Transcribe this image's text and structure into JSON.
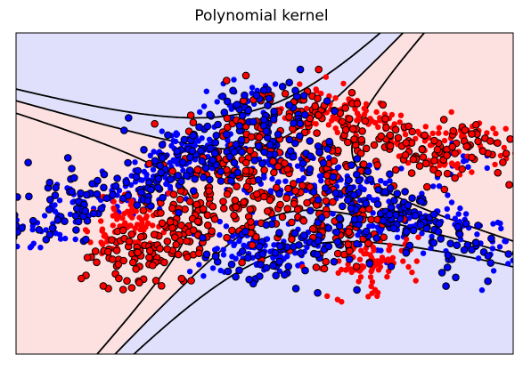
{
  "chart_data": {
    "type": "scatter",
    "title": "Polynomial kernel",
    "xlabel": "",
    "ylabel": "",
    "xlim": [
      -3.0,
      3.0
    ],
    "ylim": [
      -2.0,
      2.0
    ],
    "grid": false,
    "legend": "none",
    "ticks": "hidden",
    "background_regions": {
      "positive": "#fde0e0",
      "negative": "#e0e0fc"
    },
    "class_colors": {
      "positive": "#ff0000",
      "negative": "#0000ff"
    },
    "decision_boundary": {
      "form": "0.5*x^2 - 1.5*y^2 + 1.2*x*y - 0.3*x + 0.4*y + 0.3",
      "levels": [
        -1,
        0,
        1
      ],
      "line_styles": [
        "dashed",
        "solid",
        "dashed"
      ],
      "color": "#000000"
    },
    "series": [
      {
        "class": "negative",
        "marker": "circle",
        "outlined_support_vectors": false,
        "points": [
          [
            -1.0,
            0.35
          ],
          [
            -1.2,
            0.2
          ],
          [
            -0.8,
            0.5
          ],
          [
            -0.6,
            0.55
          ],
          [
            -1.1,
            0.4
          ],
          [
            -1.4,
            0.1
          ],
          [
            -1.7,
            -0.05
          ],
          [
            -2.0,
            -0.05
          ],
          [
            -2.3,
            -0.1
          ],
          [
            -0.9,
            0.6
          ],
          [
            0.1,
            0.5
          ],
          [
            0.3,
            0.35
          ],
          [
            0.6,
            0.1
          ],
          [
            0.9,
            0.2
          ],
          [
            1.2,
            0.05
          ],
          [
            1.5,
            -0.1
          ],
          [
            1.7,
            -0.35
          ],
          [
            2.0,
            -0.35
          ],
          [
            2.4,
            -0.4
          ],
          [
            -0.6,
            -0.7
          ],
          [
            -0.3,
            -0.75
          ],
          [
            0.0,
            -0.72
          ],
          [
            0.2,
            -0.8
          ],
          [
            -0.1,
            -0.55
          ],
          [
            0.5,
            -0.6
          ],
          [
            -0.4,
            1.05
          ],
          [
            -0.2,
            1.15
          ],
          [
            1.2,
            -0.55
          ],
          [
            1.6,
            -0.45
          ],
          [
            -2.8,
            -0.45
          ],
          [
            -2.5,
            -0.3
          ],
          [
            2.4,
            0.4
          ],
          [
            2.75,
            -0.6
          ],
          [
            0.3,
            0.0
          ],
          [
            -0.2,
            0.3
          ]
        ]
      },
      {
        "class": "positive",
        "marker": "circle",
        "outlined_support_vectors": false,
        "points": [
          [
            -1.6,
            -0.3
          ],
          [
            -1.5,
            -0.45
          ],
          [
            -1.7,
            -0.4
          ],
          [
            -1.9,
            -0.6
          ],
          [
            -1.6,
            -0.2
          ],
          [
            1.2,
            -0.75
          ],
          [
            1.4,
            -0.85
          ],
          [
            1.1,
            -0.95
          ],
          [
            1.5,
            -0.7
          ],
          [
            1.3,
            -1.1
          ],
          [
            0.8,
            1.05
          ],
          [
            1.0,
            0.95
          ],
          [
            0.6,
            1.1
          ],
          [
            1.3,
            0.9
          ],
          [
            2.0,
            0.6
          ],
          [
            2.3,
            0.75
          ],
          [
            2.6,
            0.6
          ],
          [
            2.1,
            0.4
          ],
          [
            0.4,
            0.9
          ],
          [
            1.6,
            0.7
          ]
        ]
      },
      {
        "class": "positive",
        "marker": "circle",
        "outlined_support_vectors": true,
        "points": [
          [
            -0.3,
            0.2
          ],
          [
            0.0,
            0.0
          ],
          [
            0.4,
            -0.2
          ],
          [
            -0.5,
            -0.1
          ],
          [
            0.7,
            0.3
          ],
          [
            -0.9,
            -0.1
          ],
          [
            0.9,
            -0.3
          ],
          [
            -1.1,
            -0.5
          ],
          [
            0.2,
            0.4
          ],
          [
            -0.2,
            -0.4
          ],
          [
            1.1,
            0.6
          ],
          [
            1.5,
            0.6
          ],
          [
            1.9,
            0.55
          ],
          [
            2.2,
            0.55
          ],
          [
            2.5,
            0.45
          ],
          [
            0.3,
            1.0
          ],
          [
            0.7,
            1.05
          ],
          [
            -0.1,
            0.9
          ],
          [
            -1.3,
            -0.8
          ],
          [
            -1.6,
            -0.75
          ],
          [
            -1.8,
            -1.0
          ],
          [
            -0.8,
            -0.5
          ],
          [
            0.6,
            -0.45
          ],
          [
            1.0,
            -0.5
          ],
          [
            -0.4,
            0.6
          ]
        ]
      },
      {
        "class": "negative",
        "marker": "circle",
        "outlined_support_vectors": true,
        "points": [
          [
            -0.2,
            -0.8
          ],
          [
            0.2,
            -0.7
          ],
          [
            0.6,
            -0.75
          ],
          [
            0.9,
            0.0
          ],
          [
            1.1,
            -0.2
          ],
          [
            -1.2,
            0.3
          ],
          [
            -0.9,
            0.45
          ],
          [
            -1.5,
            0.05
          ],
          [
            -2.1,
            0.0
          ],
          [
            -2.6,
            -0.2
          ],
          [
            -0.2,
            1.05
          ],
          [
            0.3,
            1.1
          ],
          [
            1.4,
            -0.25
          ],
          [
            1.7,
            -0.2
          ],
          [
            2.05,
            -0.45
          ],
          [
            0.1,
            0.6
          ],
          [
            0.5,
            0.5
          ],
          [
            -0.6,
            0.5
          ],
          [
            2.5,
            -0.7
          ],
          [
            -3.0,
            -0.4
          ]
        ]
      }
    ]
  }
}
